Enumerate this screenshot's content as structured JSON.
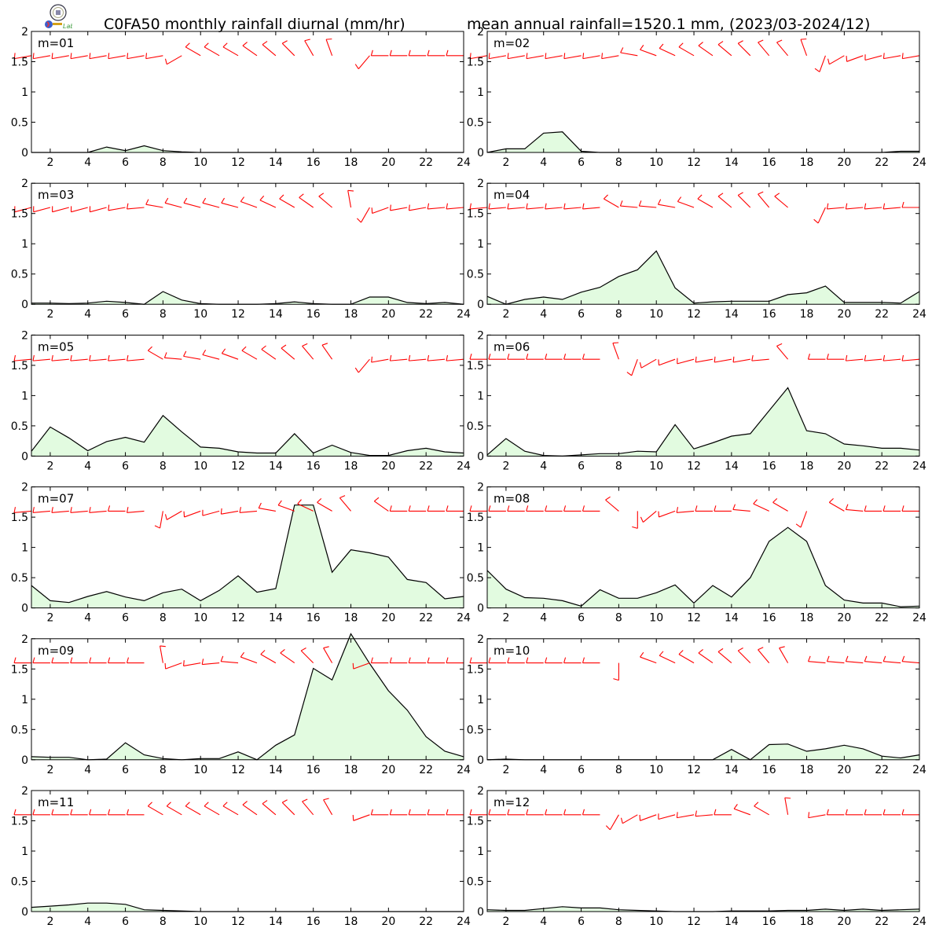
{
  "header": {
    "title": "C0FA50 monthly rainfall diurnal (mm/hr)",
    "subtitle": "mean annual rainfall=1520.1 mm, (2023/03-2024/12)",
    "logo_text": "Lab"
  },
  "colors": {
    "area_fill": "#e2fbe0",
    "line": "#000000",
    "wind_barb": "#ff0000"
  },
  "axes": {
    "x_ticks": [
      2,
      4,
      6,
      8,
      10,
      12,
      14,
      16,
      18,
      20,
      22,
      24
    ],
    "y_ticks": [
      "0",
      "0.5",
      "1",
      "1.5",
      "2"
    ],
    "xlim": [
      1,
      24
    ],
    "ylim": [
      0,
      2
    ]
  },
  "chart_data": [
    {
      "type": "area",
      "label": "m=01",
      "x": [
        1,
        2,
        3,
        4,
        5,
        6,
        7,
        8,
        9,
        10,
        11,
        12,
        13,
        14,
        15,
        16,
        17,
        18,
        19,
        20,
        21,
        22,
        23,
        24
      ],
      "values": [
        0,
        0,
        0,
        0,
        0.09,
        0.03,
        0.11,
        0.03,
        0.01,
        0,
        0,
        0,
        0,
        0,
        0,
        0,
        0,
        0,
        0,
        0,
        0,
        0,
        0,
        0
      ]
    },
    {
      "type": "area",
      "label": "m=02",
      "x": [
        1,
        2,
        3,
        4,
        5,
        6,
        7,
        8,
        9,
        10,
        11,
        12,
        13,
        14,
        15,
        16,
        17,
        18,
        19,
        20,
        21,
        22,
        23,
        24
      ],
      "values": [
        0,
        0.06,
        0.06,
        0.32,
        0.34,
        0.02,
        0,
        0,
        0,
        0,
        0,
        0,
        0,
        0,
        0,
        0,
        0,
        0,
        0,
        0,
        0,
        0,
        0.02,
        0.02
      ]
    },
    {
      "type": "area",
      "label": "m=03",
      "x": [
        1,
        2,
        3,
        4,
        5,
        6,
        7,
        8,
        9,
        10,
        11,
        12,
        13,
        14,
        15,
        16,
        17,
        18,
        19,
        20,
        21,
        22,
        23,
        24
      ],
      "values": [
        0.02,
        0.02,
        0.01,
        0.02,
        0.05,
        0.03,
        0,
        0.21,
        0.07,
        0.01,
        0,
        0,
        0,
        0.01,
        0.04,
        0.01,
        0,
        0,
        0.12,
        0.12,
        0.03,
        0.01,
        0.03,
        0
      ]
    },
    {
      "type": "area",
      "label": "m=04",
      "x": [
        1,
        2,
        3,
        4,
        5,
        6,
        7,
        8,
        9,
        10,
        11,
        12,
        13,
        14,
        15,
        16,
        17,
        18,
        19,
        20,
        21,
        22,
        23,
        24
      ],
      "values": [
        0.13,
        0,
        0.08,
        0.12,
        0.08,
        0.2,
        0.28,
        0.46,
        0.57,
        0.88,
        0.27,
        0.02,
        0.04,
        0.05,
        0.05,
        0.05,
        0.16,
        0.19,
        0.3,
        0.03,
        0.03,
        0.03,
        0.02,
        0.21
      ]
    },
    {
      "type": "area",
      "label": "m=05",
      "x": [
        1,
        2,
        3,
        4,
        5,
        6,
        7,
        8,
        9,
        10,
        11,
        12,
        13,
        14,
        15,
        16,
        17,
        18,
        19,
        20,
        21,
        22,
        23,
        24
      ],
      "values": [
        0.08,
        0.48,
        0.3,
        0.09,
        0.24,
        0.31,
        0.23,
        0.67,
        0.4,
        0.15,
        0.13,
        0.07,
        0.05,
        0.05,
        0.37,
        0.05,
        0.18,
        0.06,
        0.01,
        0.01,
        0.09,
        0.13,
        0.07,
        0.05
      ]
    },
    {
      "type": "area",
      "label": "m=06",
      "x": [
        1,
        2,
        3,
        4,
        5,
        6,
        7,
        8,
        9,
        10,
        11,
        12,
        13,
        14,
        15,
        16,
        17,
        18,
        19,
        20,
        21,
        22,
        23,
        24
      ],
      "values": [
        0.02,
        0.29,
        0.08,
        0.01,
        0,
        0.02,
        0.04,
        0.04,
        0.08,
        0.07,
        0.52,
        0.12,
        0.22,
        0.33,
        0.37,
        0.75,
        1.13,
        0.42,
        0.37,
        0.2,
        0.17,
        0.13,
        0.13,
        0.1
      ]
    },
    {
      "type": "area",
      "label": "m=07",
      "x": [
        1,
        2,
        3,
        4,
        5,
        6,
        7,
        8,
        9,
        10,
        11,
        12,
        13,
        14,
        15,
        16,
        17,
        18,
        19,
        20,
        21,
        22,
        23,
        24
      ],
      "values": [
        0.37,
        0.12,
        0.09,
        0.19,
        0.27,
        0.18,
        0.12,
        0.25,
        0.31,
        0.12,
        0.29,
        0.53,
        0.26,
        0.32,
        1.7,
        1.7,
        0.59,
        0.96,
        0.91,
        0.84,
        0.47,
        0.42,
        0.15,
        0.19
      ]
    },
    {
      "type": "area",
      "label": "m=08",
      "x": [
        1,
        2,
        3,
        4,
        5,
        6,
        7,
        8,
        9,
        10,
        11,
        12,
        13,
        14,
        15,
        16,
        17,
        18,
        19,
        20,
        21,
        22,
        23,
        24
      ],
      "values": [
        0.62,
        0.31,
        0.17,
        0.16,
        0.12,
        0.03,
        0.3,
        0.16,
        0.16,
        0.25,
        0.38,
        0.08,
        0.37,
        0.18,
        0.5,
        1.1,
        1.33,
        1.1,
        0.37,
        0.13,
        0.08,
        0.08,
        0.02,
        0.03
      ]
    },
    {
      "type": "area",
      "label": "m=09",
      "x": [
        1,
        2,
        3,
        4,
        5,
        6,
        7,
        8,
        9,
        10,
        11,
        12,
        13,
        14,
        15,
        16,
        17,
        18,
        19,
        20,
        21,
        22,
        23,
        24
      ],
      "values": [
        0.05,
        0.04,
        0.04,
        0,
        0.01,
        0.28,
        0.08,
        0.02,
        0,
        0.02,
        0.02,
        0.13,
        0,
        0.24,
        0.41,
        1.51,
        1.32,
        2.08,
        1.59,
        1.14,
        0.82,
        0.38,
        0.14,
        0.05
      ]
    },
    {
      "type": "area",
      "label": "m=10",
      "x": [
        1,
        2,
        3,
        4,
        5,
        6,
        7,
        8,
        9,
        10,
        11,
        12,
        13,
        14,
        15,
        16,
        17,
        18,
        19,
        20,
        21,
        22,
        23,
        24
      ],
      "values": [
        0,
        0.01,
        0,
        0,
        0,
        0,
        0,
        0,
        0,
        0,
        0,
        0,
        0,
        0.17,
        0,
        0.25,
        0.26,
        0.14,
        0.18,
        0.24,
        0.18,
        0.06,
        0.03,
        0.08
      ]
    },
    {
      "type": "area",
      "label": "m=11",
      "x": [
        1,
        2,
        3,
        4,
        5,
        6,
        7,
        8,
        9,
        10,
        11,
        12,
        13,
        14,
        15,
        16,
        17,
        18,
        19,
        20,
        21,
        22,
        23,
        24
      ],
      "values": [
        0.07,
        0.09,
        0.11,
        0.14,
        0.14,
        0.12,
        0.03,
        0.02,
        0.01,
        0,
        0,
        0,
        0,
        0,
        0,
        0,
        0,
        0,
        0,
        0,
        0,
        0,
        0,
        0
      ]
    },
    {
      "type": "area",
      "label": "m=12",
      "x": [
        1,
        2,
        3,
        4,
        5,
        6,
        7,
        8,
        9,
        10,
        11,
        12,
        13,
        14,
        15,
        16,
        17,
        18,
        19,
        20,
        21,
        22,
        23,
        24
      ],
      "values": [
        0.03,
        0.02,
        0.02,
        0.05,
        0.08,
        0.06,
        0.06,
        0.03,
        0.02,
        0.01,
        0,
        0,
        0,
        0.01,
        0.01,
        0.01,
        0.02,
        0.02,
        0.04,
        0.02,
        0.04,
        0.02,
        0.03,
        0.04
      ]
    }
  ],
  "wind_barbs": [
    {
      "dir": [
        260,
        260,
        260,
        260,
        260,
        260,
        260,
        260,
        240,
        300,
        300,
        300,
        305,
        310,
        315,
        330,
        340,
        null,
        220,
        270,
        270,
        270,
        270,
        270
      ]
    },
    {
      "dir": [
        260,
        260,
        260,
        260,
        260,
        260,
        260,
        260,
        280,
        290,
        295,
        300,
        305,
        310,
        315,
        320,
        320,
        340,
        200,
        240,
        250,
        255,
        260,
        260
      ]
    },
    {
      "dir": [
        255,
        255,
        255,
        255,
        255,
        260,
        265,
        280,
        285,
        285,
        285,
        285,
        290,
        295,
        300,
        305,
        310,
        350,
        210,
        250,
        260,
        260,
        265,
        265
      ]
    },
    {
      "dir": [
        265,
        265,
        265,
        265,
        265,
        265,
        265,
        300,
        275,
        275,
        280,
        290,
        300,
        310,
        315,
        320,
        310,
        null,
        205,
        265,
        265,
        265,
        265,
        270
      ]
    },
    {
      "dir": [
        265,
        265,
        265,
        265,
        265,
        265,
        265,
        300,
        275,
        280,
        285,
        290,
        300,
        305,
        310,
        320,
        325,
        null,
        220,
        260,
        265,
        265,
        265,
        265
      ]
    },
    {
      "dir": [
        270,
        270,
        270,
        270,
        270,
        270,
        270,
        340,
        200,
        240,
        250,
        255,
        260,
        260,
        260,
        265,
        320,
        null,
        270,
        270,
        265,
        265,
        265,
        265
      ]
    },
    {
      "dir": [
        265,
        265,
        265,
        265,
        265,
        270,
        265,
        190,
        240,
        250,
        255,
        260,
        265,
        280,
        290,
        295,
        300,
        320,
        null,
        305,
        270,
        270,
        270,
        270
      ]
    },
    {
      "dir": [
        270,
        270,
        270,
        270,
        270,
        270,
        270,
        310,
        180,
        230,
        250,
        265,
        270,
        270,
        275,
        295,
        300,
        200,
        null,
        300,
        275,
        270,
        270,
        270
      ]
    },
    {
      "dir": [
        270,
        270,
        270,
        270,
        270,
        270,
        270,
        350,
        250,
        260,
        265,
        275,
        290,
        300,
        305,
        315,
        330,
        null,
        250,
        270,
        270,
        270,
        270,
        270
      ]
    },
    {
      "dir": [
        270,
        270,
        270,
        270,
        270,
        270,
        270,
        180,
        null,
        290,
        295,
        300,
        305,
        310,
        315,
        320,
        330,
        null,
        275,
        275,
        275,
        275,
        275,
        275
      ]
    },
    {
      "dir": [
        270,
        270,
        270,
        270,
        270,
        270,
        270,
        300,
        300,
        300,
        300,
        300,
        305,
        310,
        315,
        320,
        330,
        null,
        250,
        270,
        270,
        270,
        270,
        270
      ]
    },
    {
      "dir": [
        270,
        270,
        270,
        270,
        270,
        270,
        270,
        210,
        240,
        250,
        255,
        260,
        265,
        270,
        290,
        300,
        350,
        null,
        260,
        270,
        270,
        270,
        270,
        270
      ]
    }
  ]
}
